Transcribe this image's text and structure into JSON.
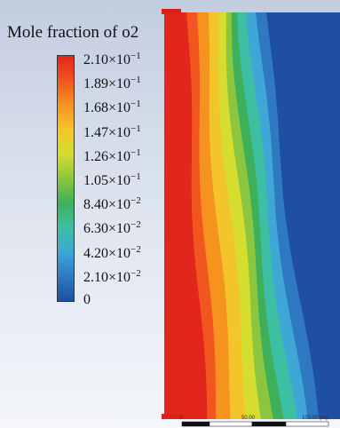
{
  "chart_data": {
    "type": "heatmap",
    "title": "Mole fraction of o2",
    "colorbar": {
      "tick_labels": [
        "2.10×10",
        "1.89×10",
        "1.68×10",
        "1.47×10",
        "1.26×10",
        "1.05×10",
        "8.40×10",
        "6.30×10",
        "4.20×10",
        "2.10×10",
        "0"
      ],
      "tick_exponents": [
        "−1",
        "−1",
        "−1",
        "−1",
        "−1",
        "−1",
        "−2",
        "−2",
        "−2",
        "−2",
        ""
      ],
      "values": [
        0.21,
        0.189,
        0.168,
        0.147,
        0.126,
        0.105,
        0.084,
        0.063,
        0.042,
        0.021,
        0
      ],
      "range": [
        0,
        0.21
      ],
      "colors": [
        "#e1261c",
        "#f2551f",
        "#f6931f",
        "#f3c52a",
        "#d5dd2f",
        "#8cc63e",
        "#3fb05a",
        "#3dbfa3",
        "#3ea7d6",
        "#2f78c2",
        "#1e4fa0"
      ]
    },
    "scale_bar": {
      "tick_labels": [
        "0",
        "50.00",
        "100.00 (m)"
      ]
    }
  }
}
